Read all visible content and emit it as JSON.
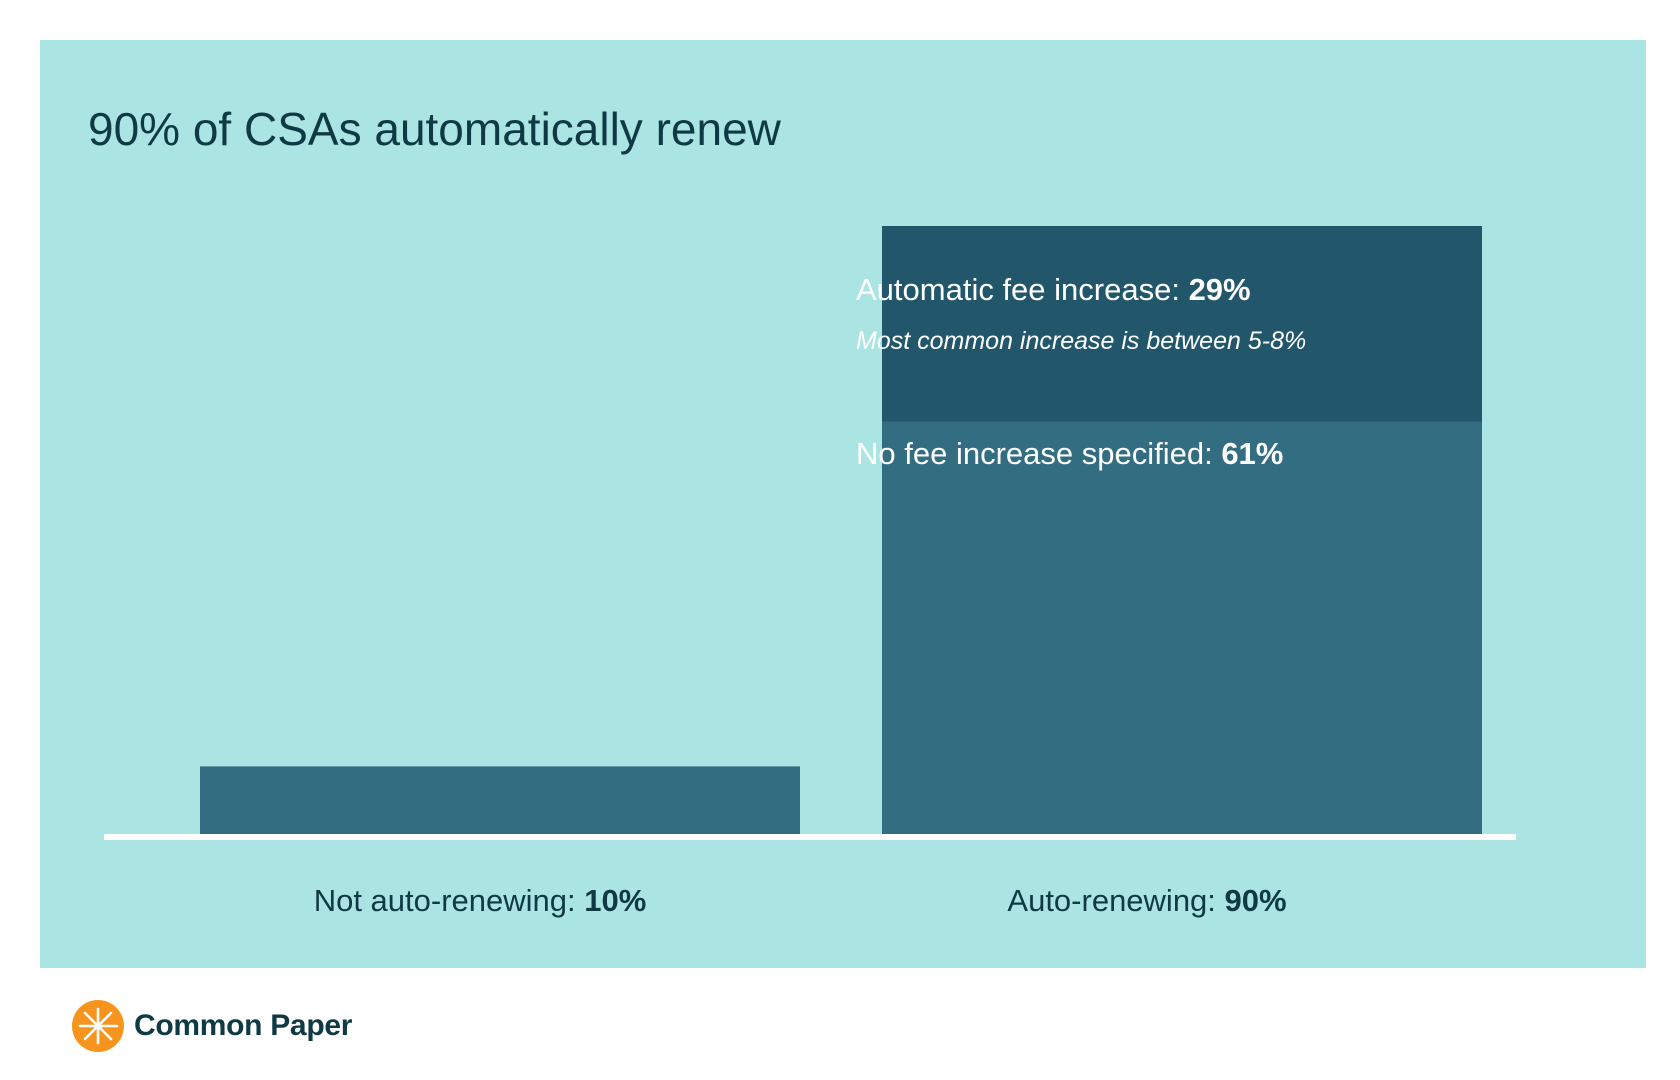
{
  "chart_data": {
    "type": "bar",
    "stacked": true,
    "title": "90% of CSAs automatically renew",
    "categories": [
      "Not auto-renewing",
      "Auto-renewing"
    ],
    "unit": "%",
    "ylim": [
      0,
      90
    ],
    "series": [
      {
        "name": "Not auto-renewing",
        "values": [
          10,
          0
        ],
        "color": "#336d82"
      },
      {
        "name": "No fee increase specified",
        "values": [
          0,
          61
        ],
        "color": "#336d82"
      },
      {
        "name": "Automatic fee increase",
        "values": [
          0,
          29
        ],
        "color": "#21566b"
      }
    ],
    "category_labels": [
      {
        "prefix": "Not auto-renewing: ",
        "value": "10%"
      },
      {
        "prefix": "Auto-renewing: ",
        "value": "90%"
      }
    ],
    "segment_labels": {
      "fee_increase": {
        "prefix": "Automatic fee increase: ",
        "value": "29%"
      },
      "fee_increase_note": "Most common increase is between 5-8%",
      "no_fee_increase": {
        "prefix": "No fee increase specified: ",
        "value": "61%"
      }
    }
  },
  "colors": {
    "panel_background": "#abe5e3",
    "bar_primary": "#336d82",
    "bar_dark": "#21566b",
    "baseline": "#ffffff",
    "text_dark": "#0f3a45",
    "logo_orange": "#f7941d"
  },
  "branding": {
    "name": "Common Paper",
    "icon": "common-paper-logo-icon"
  }
}
